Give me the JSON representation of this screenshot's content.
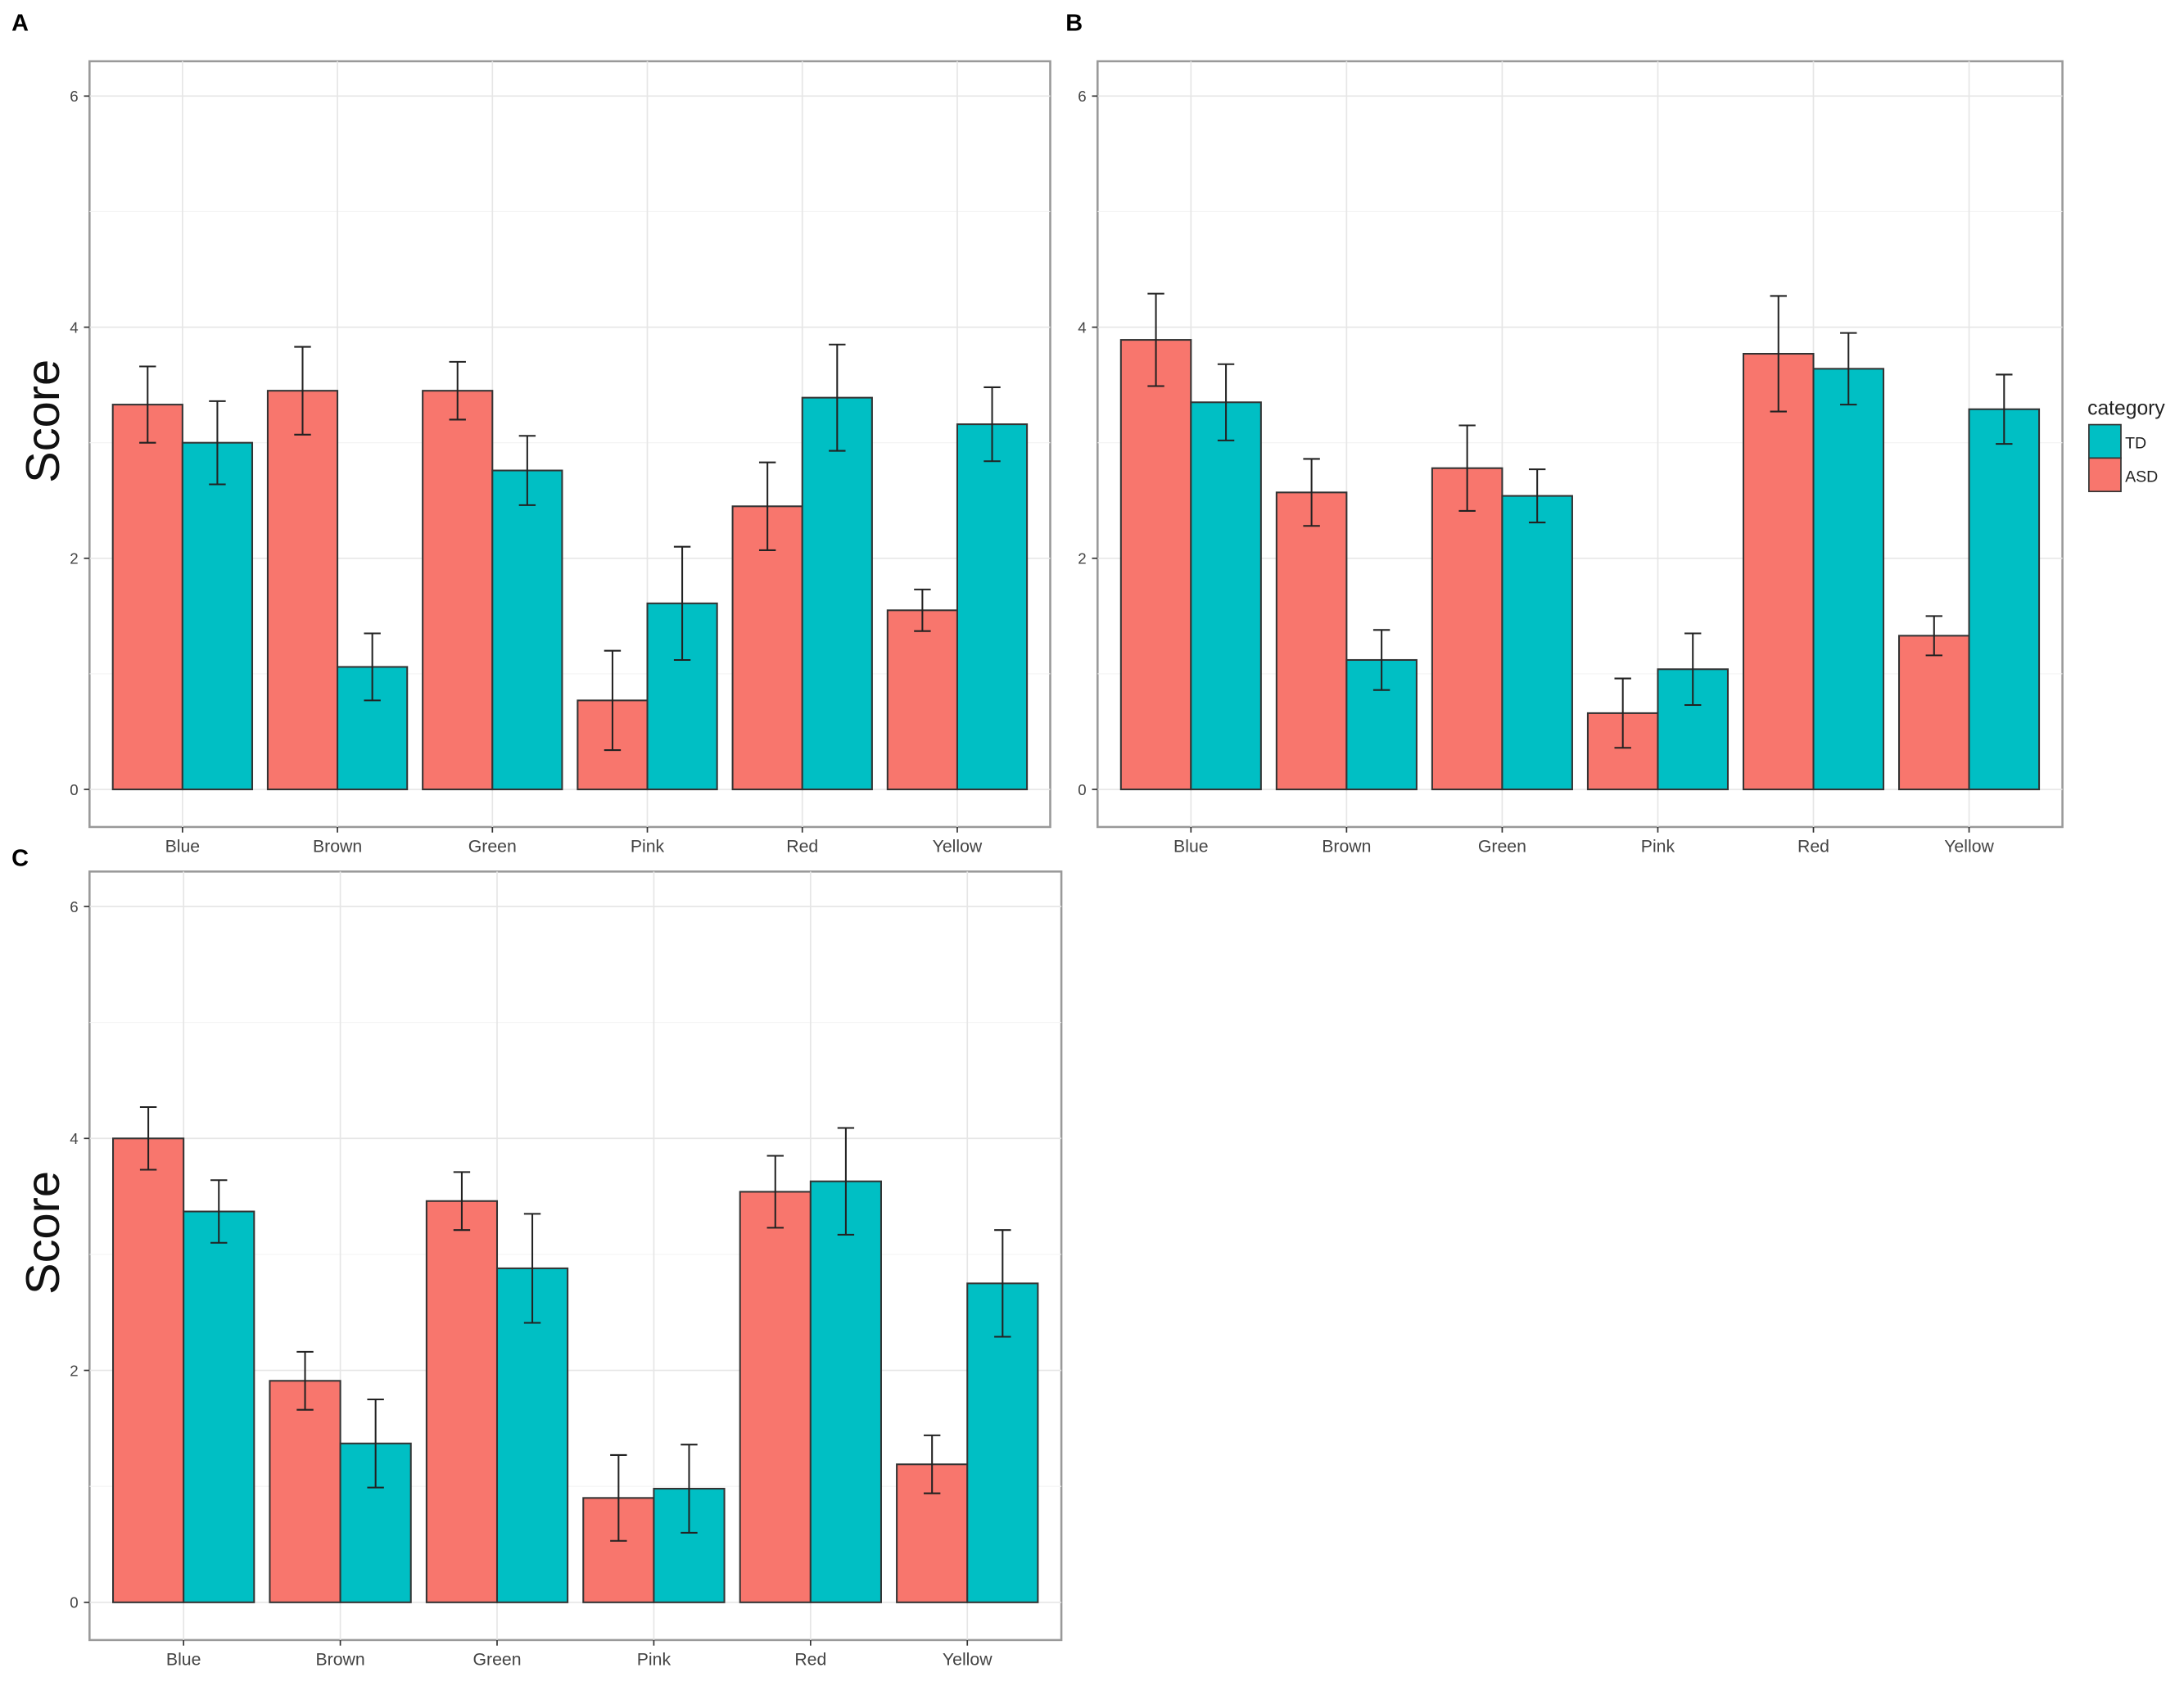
{
  "legend": {
    "title": "category",
    "entries": [
      {
        "name": "TD",
        "color": "#00BFC4"
      },
      {
        "name": "ASD",
        "color": "#F8766D"
      }
    ],
    "placement": "right of panel B"
  },
  "chart_data": [
    {
      "panel": "A",
      "type": "bar",
      "ylabel": "Score",
      "xlabel": "",
      "ylim": [
        0,
        6
      ],
      "yticks": [
        0,
        2,
        4,
        6
      ],
      "grid": true,
      "categories": [
        "Blue",
        "Brown",
        "Green",
        "Pink",
        "Red",
        "Yellow"
      ],
      "series": [
        {
          "name": "ASD",
          "color": "#F8766D",
          "values": [
            3.33,
            3.45,
            3.45,
            0.77,
            2.45,
            1.55
          ],
          "errors": [
            0.33,
            0.38,
            0.25,
            0.43,
            0.38,
            0.18
          ]
        },
        {
          "name": "TD",
          "color": "#00BFC4",
          "values": [
            3.0,
            1.06,
            2.76,
            1.61,
            3.39,
            3.16
          ],
          "errors": [
            0.36,
            0.29,
            0.3,
            0.49,
            0.46,
            0.32
          ]
        }
      ]
    },
    {
      "panel": "B",
      "type": "bar",
      "ylabel": "",
      "xlabel": "",
      "ylim": [
        0,
        6
      ],
      "yticks": [
        0,
        2,
        4,
        6
      ],
      "grid": true,
      "categories": [
        "Blue",
        "Brown",
        "Green",
        "Pink",
        "Red",
        "Yellow"
      ],
      "series": [
        {
          "name": "ASD",
          "color": "#F8766D",
          "values": [
            3.89,
            2.57,
            2.78,
            0.66,
            3.77,
            1.33
          ],
          "errors": [
            0.4,
            0.29,
            0.37,
            0.3,
            0.5,
            0.17
          ]
        },
        {
          "name": "TD",
          "color": "#00BFC4",
          "values": [
            3.35,
            1.12,
            2.54,
            1.04,
            3.64,
            3.29
          ],
          "errors": [
            0.33,
            0.26,
            0.23,
            0.31,
            0.31,
            0.3
          ]
        }
      ]
    },
    {
      "panel": "C",
      "type": "bar",
      "ylabel": "Score",
      "xlabel": "",
      "ylim": [
        0,
        6
      ],
      "yticks": [
        0,
        2,
        4,
        6
      ],
      "grid": true,
      "categories": [
        "Blue",
        "Brown",
        "Green",
        "Pink",
        "Red",
        "Yellow"
      ],
      "series": [
        {
          "name": "ASD",
          "color": "#F8766D",
          "values": [
            4.0,
            1.91,
            3.46,
            0.9,
            3.54,
            1.19
          ],
          "errors": [
            0.27,
            0.25,
            0.25,
            0.37,
            0.31,
            0.25
          ]
        },
        {
          "name": "TD",
          "color": "#00BFC4",
          "values": [
            3.37,
            1.37,
            2.88,
            0.98,
            3.63,
            2.75
          ],
          "errors": [
            0.27,
            0.38,
            0.47,
            0.38,
            0.46,
            0.46
          ]
        }
      ]
    }
  ]
}
